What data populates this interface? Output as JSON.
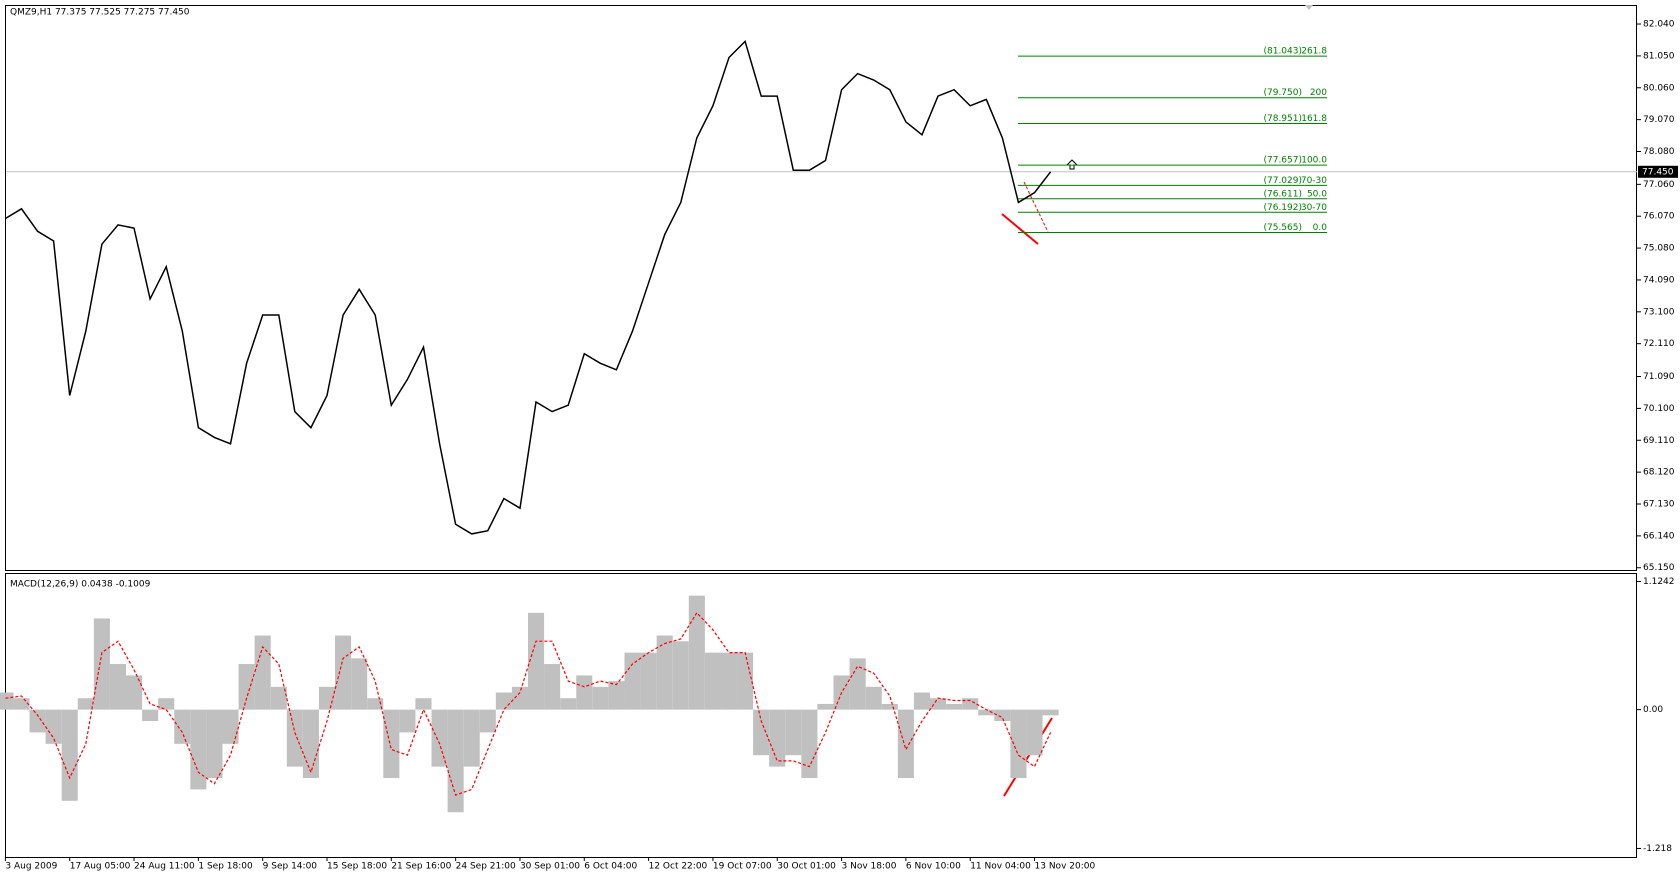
{
  "chart_data": [
    {
      "type": "line",
      "title": "QMZ9,H1  77.375 77.525 77.275 77.450",
      "color": "#000000",
      "categories": [
        "3 Aug 2009",
        null,
        null,
        null,
        "17 Aug 05:00",
        null,
        null,
        null,
        "24 Aug 11:00",
        null,
        null,
        null,
        "1 Sep 18:00",
        null,
        null,
        null,
        "9 Sep 14:00",
        null,
        null,
        null,
        "15 Sep 18:00",
        null,
        null,
        null,
        "21 Sep 16:00",
        null,
        null,
        null,
        "24 Sep 21:00",
        null,
        null,
        null,
        "30 Sep 01:00",
        null,
        null,
        null,
        "6 Oct 04:00",
        null,
        null,
        null,
        "12 Oct 22:00",
        null,
        null,
        null,
        "19 Oct 07:00",
        null,
        null,
        null,
        "30 Oct 01:00",
        null,
        null,
        null,
        "3 Nov 18:00",
        null,
        null,
        null,
        "6 Nov 10:00",
        null,
        null,
        null,
        "11 Nov 04:00",
        null,
        null,
        null,
        "13 Nov 20:00",
        null
      ],
      "values": [
        76.0,
        76.3,
        75.6,
        75.3,
        70.5,
        72.5,
        75.2,
        75.8,
        75.7,
        73.5,
        74.5,
        72.5,
        69.5,
        69.2,
        69.0,
        71.5,
        73.0,
        73.0,
        70.0,
        69.5,
        70.5,
        73.0,
        73.8,
        73.0,
        70.2,
        71.0,
        72.0,
        69.0,
        66.5,
        66.2,
        66.3,
        67.3,
        67.0,
        70.3,
        70.0,
        70.2,
        71.8,
        71.5,
        71.3,
        72.5,
        74.0,
        75.5,
        76.5,
        78.5,
        79.5,
        81.0,
        81.5,
        79.8,
        79.8,
        77.5,
        77.5,
        77.8,
        80.0,
        80.5,
        80.3,
        80.0,
        79.0,
        78.6,
        79.8,
        80.0,
        79.5,
        79.7,
        78.5,
        76.5,
        76.8,
        77.45
      ],
      "ylim": [
        65.08,
        82.6
      ],
      "yticks": [
        {
          "value": 82.04,
          "label": "82.040"
        },
        {
          "value": 81.05,
          "label": "81.050"
        },
        {
          "value": 80.06,
          "label": "80.060"
        },
        {
          "value": 79.07,
          "label": "79.070"
        },
        {
          "value": 78.08,
          "label": "78.080"
        },
        {
          "value": 77.06,
          "label": "77.060"
        },
        {
          "value": 76.07,
          "label": "76.070"
        },
        {
          "value": 75.08,
          "label": "75.080"
        },
        {
          "value": 74.09,
          "label": "74.090"
        },
        {
          "value": 73.1,
          "label": "73.100"
        },
        {
          "value": 72.11,
          "label": "72.110"
        },
        {
          "value": 71.09,
          "label": "71.090"
        },
        {
          "value": 70.1,
          "label": "70.100"
        },
        {
          "value": 69.11,
          "label": "69.110"
        },
        {
          "value": 68.12,
          "label": "68.120"
        },
        {
          "value": 67.13,
          "label": "67.130"
        },
        {
          "value": 66.14,
          "label": "66.140"
        },
        {
          "value": 65.15,
          "label": "65.150"
        }
      ],
      "last_price": {
        "value": 77.45,
        "label": "77.450"
      },
      "fib_color": "#008000",
      "fib_levels": [
        {
          "price": 81.043,
          "price_label": "(81.043)",
          "level": "261.8"
        },
        {
          "price": 79.75,
          "price_label": "(79.750)",
          "level": "200"
        },
        {
          "price": 78.951,
          "price_label": "(78.951)",
          "level": "161.8"
        },
        {
          "price": 77.657,
          "price_label": "(77.657)",
          "level": "100.0"
        },
        {
          "price": 77.029,
          "price_label": "(77.029)",
          "level": "70-30"
        },
        {
          "price": 76.611,
          "price_label": "(76.611)",
          "level": "50.0"
        },
        {
          "price": 76.192,
          "price_label": "(76.192)",
          "level": "30-70"
        },
        {
          "price": 75.565,
          "price_label": "(75.565)",
          "level": "0.0"
        }
      ]
    },
    {
      "type": "macd",
      "title": "MACD(12,26,9) 0.0438 -0.1009",
      "ylim": [
        -1.293,
        1.19
      ],
      "yticks": [
        1.1242,
        {
          "value": 0,
          "label": "0.00"
        },
        -1.218
      ],
      "series": [
        {
          "type": "bar",
          "color": "#c0c0c0",
          "values": [
            0.15,
            0.1,
            -0.2,
            -0.3,
            -0.8,
            0.1,
            0.8,
            0.4,
            0.3,
            -0.1,
            0.1,
            -0.3,
            -0.7,
            -0.6,
            -0.3,
            0.4,
            0.65,
            0.2,
            -0.5,
            -0.6,
            0.2,
            0.65,
            0.45,
            0.1,
            -0.6,
            -0.2,
            0.1,
            -0.5,
            -0.9,
            -0.5,
            -0.2,
            0.15,
            0.2,
            0.85,
            0.4,
            0.1,
            0.3,
            0.2,
            0.25,
            0.5,
            0.5,
            0.65,
            0.6,
            1.0,
            0.5,
            0.5,
            0.5,
            -0.4,
            -0.5,
            -0.4,
            -0.6,
            0.05,
            0.3,
            0.45,
            0.2,
            0.05,
            -0.6,
            0.15,
            0.1,
            0.05,
            0.1,
            -0.05,
            -0.1,
            -0.6,
            -0.4,
            -0.05
          ]
        },
        {
          "type": "line",
          "color": "#ff0000",
          "values": [
            0.1,
            0.12,
            -0.05,
            -0.25,
            -0.6,
            -0.3,
            0.5,
            0.6,
            0.35,
            0.05,
            0.0,
            -0.2,
            -0.55,
            -0.65,
            -0.4,
            0.1,
            0.55,
            0.4,
            -0.2,
            -0.55,
            -0.1,
            0.45,
            0.55,
            0.25,
            -0.35,
            -0.4,
            0.0,
            -0.3,
            -0.75,
            -0.7,
            -0.35,
            0.0,
            0.15,
            0.6,
            0.6,
            0.25,
            0.2,
            0.25,
            0.22,
            0.4,
            0.5,
            0.58,
            0.62,
            0.85,
            0.7,
            0.5,
            0.5,
            -0.1,
            -0.45,
            -0.45,
            -0.5,
            -0.2,
            0.15,
            0.38,
            0.32,
            0.12,
            -0.35,
            -0.1,
            0.1,
            0.08,
            0.08,
            0.0,
            -0.07,
            -0.4,
            -0.5,
            -0.2
          ]
        }
      ]
    }
  ]
}
